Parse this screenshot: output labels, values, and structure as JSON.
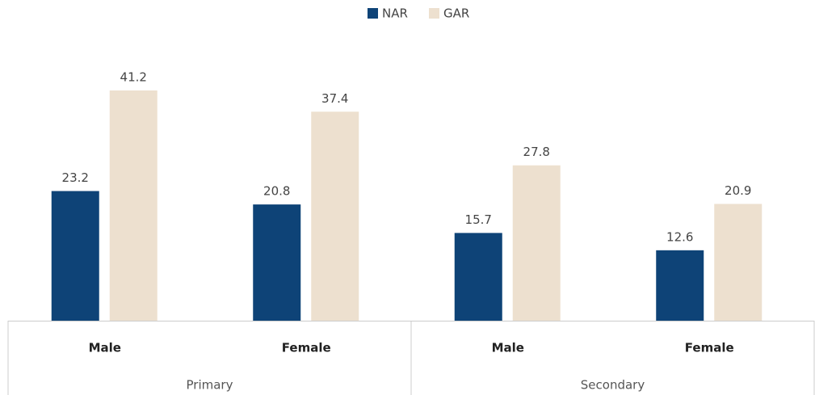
{
  "chart_data": {
    "type": "bar",
    "categories": [
      "Male",
      "Female",
      "Male",
      "Female"
    ],
    "groups": [
      "Primary",
      "Secondary"
    ],
    "series": [
      {
        "name": "NAR",
        "color": "#0e4377",
        "values": [
          23.2,
          20.8,
          15.7,
          12.6
        ]
      },
      {
        "name": "GAR",
        "color": "#ede0cf",
        "values": [
          41.2,
          37.4,
          27.8,
          20.9
        ]
      }
    ]
  }
}
